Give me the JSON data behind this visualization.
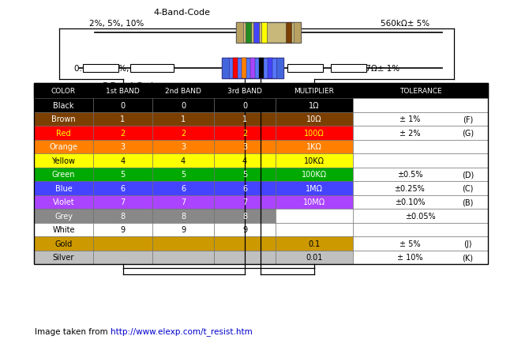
{
  "title": "4-Band-Code",
  "subtitle_left": "2%, 5%, 10%",
  "subtitle_right": "560kΩ± 5%",
  "header": [
    "COLOR",
    "1st BAND",
    "2nd BAND",
    "3rd BAND",
    "MULTIPLIER",
    "TOLERANCE"
  ],
  "rows": [
    {
      "color_name": "Black",
      "bg": "#000000",
      "fg": "#ffffff",
      "band1": "0",
      "band2": "0",
      "band3": "0",
      "mult": "1Ω",
      "mult_bg": "#000000",
      "tol": "",
      "tol_code": ""
    },
    {
      "color_name": "Brown",
      "bg": "#7B3F00",
      "fg": "#ffffff",
      "band1": "1",
      "band2": "1",
      "band3": "1",
      "mult": "10Ω",
      "mult_bg": "#7B3F00",
      "tol": "± 1%",
      "tol_code": "(F)"
    },
    {
      "color_name": "Red",
      "bg": "#ff0000",
      "fg": "#ffff00",
      "band1": "2",
      "band2": "2",
      "band3": "2",
      "mult": "100Ω",
      "mult_bg": "#ff0000",
      "tol": "± 2%",
      "tol_code": "(G)"
    },
    {
      "color_name": "Orange",
      "bg": "#ff8000",
      "fg": "#ffffff",
      "band1": "3",
      "band2": "3",
      "band3": "3",
      "mult": "1KΩ",
      "mult_bg": "#ff8000",
      "tol": "",
      "tol_code": ""
    },
    {
      "color_name": "Yellow",
      "bg": "#ffff00",
      "fg": "#000000",
      "band1": "4",
      "band2": "4",
      "band3": "4",
      "mult": "10KΩ",
      "mult_bg": "#ffff00",
      "tol": "",
      "tol_code": ""
    },
    {
      "color_name": "Green",
      "bg": "#00aa00",
      "fg": "#ffffff",
      "band1": "5",
      "band2": "5",
      "band3": "5",
      "mult": "100KΩ",
      "mult_bg": "#00aa00",
      "tol": "±0.5%",
      "tol_code": "(D)"
    },
    {
      "color_name": "Blue",
      "bg": "#4444ff",
      "fg": "#ffffff",
      "band1": "6",
      "band2": "6",
      "band3": "6",
      "mult": "1MΩ",
      "mult_bg": "#4444ff",
      "tol": "±0.25%",
      "tol_code": "(C)"
    },
    {
      "color_name": "Violet",
      "bg": "#aa44ff",
      "fg": "#ffffff",
      "band1": "7",
      "band2": "7",
      "band3": "7",
      "mult": "10MΩ",
      "mult_bg": "#aa44ff",
      "tol": "±0.10%",
      "tol_code": "(B)"
    },
    {
      "color_name": "Grey",
      "bg": "#888888",
      "fg": "#ffffff",
      "band1": "8",
      "band2": "8",
      "band3": "8",
      "mult": "",
      "mult_bg": "#ffffff",
      "tol": "±0.05%",
      "tol_code": ""
    },
    {
      "color_name": "White",
      "bg": "#ffffff",
      "fg": "#000000",
      "band1": "9",
      "band2": "9",
      "band3": "9",
      "mult": "",
      "mult_bg": "#ffffff",
      "tol": "",
      "tol_code": ""
    },
    {
      "color_name": "Gold",
      "bg": "#CC9900",
      "fg": "#000000",
      "band1": "",
      "band2": "",
      "band3": "",
      "mult": "0.1",
      "mult_bg": "#CC9900",
      "tol": "± 5%",
      "tol_code": "(J)"
    },
    {
      "color_name": "Silver",
      "bg": "#C0C0C0",
      "fg": "#000000",
      "band1": "",
      "band2": "",
      "band3": "",
      "mult": "0.01",
      "mult_bg": "#C0C0C0",
      "tol": "± 10%",
      "tol_code": "(K)"
    }
  ],
  "bottom_label_left": "0.1%, 0.25%, 0.5%, 1%",
  "bottom_label_right": "237Ω± 1%",
  "bottom_title": "5-Band-Code",
  "footer_text": "Image taken from ",
  "footer_url": "http://www.elexp.com/t_resist.htm",
  "bg_color": "#ffffff",
  "header_bg": "#000000",
  "header_fg": "#ffffff",
  "border_color": "#000000",
  "resistor4_colors": [
    "#228B22",
    "#4444ff",
    "#ffff00",
    "#7B3F00"
  ],
  "resistor4_body": "#c8b87a",
  "resistor5_colors": [
    "#ff0000",
    "#ff8000",
    "#aa44ff",
    "#000000",
    "#4444ff"
  ],
  "resistor5_body": "#5577ff"
}
